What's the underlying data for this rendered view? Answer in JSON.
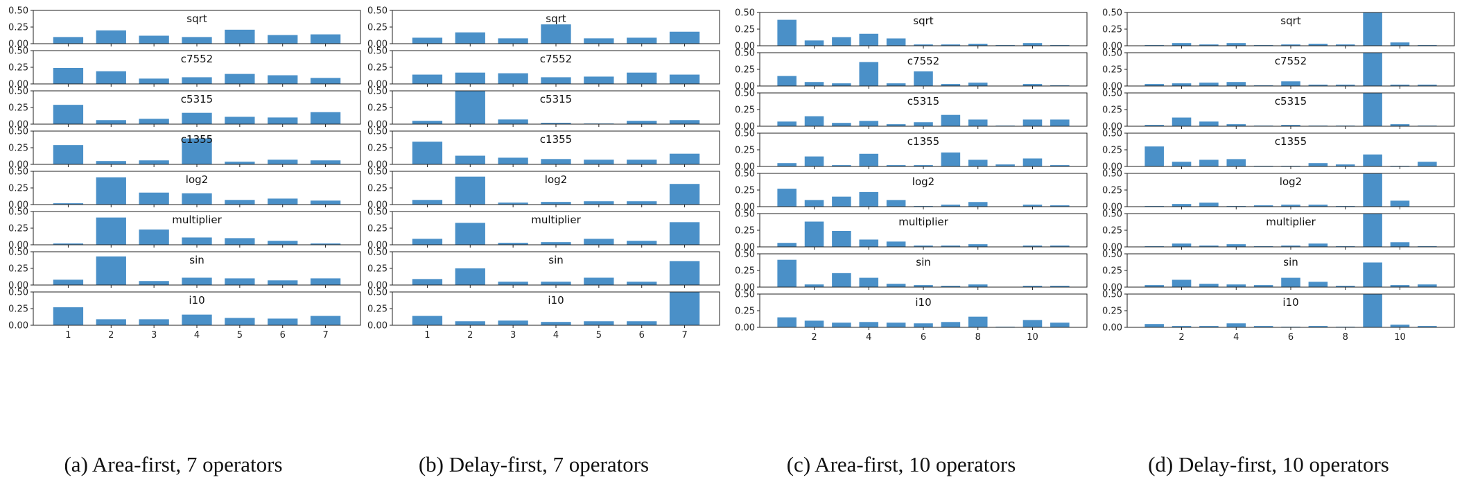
{
  "chart_data": [
    {
      "type": "bar",
      "caption": "(a) Area-first, 7 operators",
      "x_ticks": [
        "1",
        "2",
        "3",
        "4",
        "5",
        "6",
        "7"
      ],
      "y_ticks": [
        "0.00",
        "0.25",
        "0.50"
      ],
      "ylim": [
        0,
        0.5
      ],
      "categories": [
        1,
        2,
        3,
        4,
        5,
        6,
        7
      ],
      "bar_color": "#4a90c8",
      "series": [
        {
          "name": "sqrt",
          "values": [
            0.1,
            0.2,
            0.12,
            0.1,
            0.21,
            0.13,
            0.14
          ]
        },
        {
          "name": "c7552",
          "values": [
            0.24,
            0.19,
            0.08,
            0.1,
            0.15,
            0.13,
            0.09
          ]
        },
        {
          "name": "c5315",
          "values": [
            0.29,
            0.06,
            0.08,
            0.17,
            0.11,
            0.1,
            0.18
          ]
        },
        {
          "name": "c1355",
          "values": [
            0.29,
            0.05,
            0.06,
            0.39,
            0.04,
            0.07,
            0.06
          ]
        },
        {
          "name": "log2",
          "values": [
            0.02,
            0.41,
            0.18,
            0.17,
            0.07,
            0.09,
            0.06
          ]
        },
        {
          "name": "multiplier",
          "values": [
            0.02,
            0.41,
            0.23,
            0.11,
            0.1,
            0.06,
            0.02
          ]
        },
        {
          "name": "sin",
          "values": [
            0.08,
            0.43,
            0.06,
            0.11,
            0.1,
            0.07,
            0.1
          ]
        },
        {
          "name": "i10",
          "values": [
            0.27,
            0.09,
            0.09,
            0.16,
            0.11,
            0.1,
            0.14
          ]
        }
      ]
    },
    {
      "type": "bar",
      "caption": "(b) Delay-first, 7 operators",
      "x_ticks": [
        "1",
        "2",
        "3",
        "4",
        "5",
        "6",
        "7"
      ],
      "y_ticks": [
        "0.00",
        "0.25",
        "0.50"
      ],
      "ylim": [
        0,
        0.5
      ],
      "categories": [
        1,
        2,
        3,
        4,
        5,
        6,
        7
      ],
      "bar_color": "#4a90c8",
      "series": [
        {
          "name": "sqrt",
          "values": [
            0.09,
            0.17,
            0.08,
            0.29,
            0.08,
            0.09,
            0.18
          ]
        },
        {
          "name": "c7552",
          "values": [
            0.14,
            0.17,
            0.16,
            0.1,
            0.11,
            0.17,
            0.14
          ]
        },
        {
          "name": "c5315",
          "values": [
            0.05,
            0.5,
            0.07,
            0.02,
            0.01,
            0.05,
            0.06
          ]
        },
        {
          "name": "c1355",
          "values": [
            0.34,
            0.13,
            0.1,
            0.08,
            0.07,
            0.07,
            0.16
          ]
        },
        {
          "name": "log2",
          "values": [
            0.07,
            0.42,
            0.03,
            0.04,
            0.05,
            0.05,
            0.31
          ]
        },
        {
          "name": "multiplier",
          "values": [
            0.09,
            0.33,
            0.03,
            0.04,
            0.09,
            0.06,
            0.34
          ]
        },
        {
          "name": "sin",
          "values": [
            0.09,
            0.25,
            0.05,
            0.05,
            0.11,
            0.05,
            0.36
          ]
        },
        {
          "name": "i10",
          "values": [
            0.14,
            0.06,
            0.07,
            0.05,
            0.06,
            0.06,
            0.5
          ]
        }
      ]
    },
    {
      "type": "bar",
      "caption": "(c) Area-first, 10 operators",
      "x_ticks": [
        "2",
        "4",
        "6",
        "8",
        "10"
      ],
      "y_ticks": [
        "0.00",
        "0.25",
        "0.50"
      ],
      "ylim": [
        0,
        0.5
      ],
      "categories": [
        1,
        2,
        3,
        4,
        5,
        6,
        7,
        8,
        9,
        10,
        11
      ],
      "bar_color": "#4a90c8",
      "series": [
        {
          "name": "sqrt",
          "values": [
            0.39,
            0.08,
            0.13,
            0.18,
            0.11,
            0.02,
            0.02,
            0.03,
            0.01,
            0.04,
            0.01
          ]
        },
        {
          "name": "c7552",
          "values": [
            0.15,
            0.06,
            0.04,
            0.36,
            0.04,
            0.22,
            0.03,
            0.05,
            0.0,
            0.03,
            0.01
          ]
        },
        {
          "name": "c5315",
          "values": [
            0.07,
            0.15,
            0.05,
            0.08,
            0.03,
            0.06,
            0.17,
            0.1,
            0.01,
            0.1,
            0.1
          ]
        },
        {
          "name": "c1355",
          "values": [
            0.05,
            0.15,
            0.02,
            0.19,
            0.02,
            0.02,
            0.21,
            0.1,
            0.03,
            0.12,
            0.02
          ]
        },
        {
          "name": "log2",
          "values": [
            0.27,
            0.1,
            0.15,
            0.22,
            0.1,
            0.01,
            0.03,
            0.07,
            0.0,
            0.03,
            0.02
          ]
        },
        {
          "name": "multiplier",
          "values": [
            0.06,
            0.38,
            0.24,
            0.11,
            0.08,
            0.02,
            0.02,
            0.04,
            0.0,
            0.02,
            0.02
          ]
        },
        {
          "name": "sin",
          "values": [
            0.41,
            0.04,
            0.21,
            0.14,
            0.05,
            0.03,
            0.02,
            0.04,
            0.0,
            0.02,
            0.02
          ]
        },
        {
          "name": "i10",
          "values": [
            0.15,
            0.1,
            0.07,
            0.08,
            0.07,
            0.06,
            0.08,
            0.16,
            0.01,
            0.11,
            0.07
          ]
        }
      ]
    },
    {
      "type": "bar",
      "caption": "(d) Delay-first, 10 operators",
      "x_ticks": [
        "2",
        "4",
        "6",
        "8",
        "10"
      ],
      "y_ticks": [
        "0.00",
        "0.25",
        "0.50"
      ],
      "ylim": [
        0,
        0.5
      ],
      "categories": [
        1,
        2,
        3,
        4,
        5,
        6,
        7,
        8,
        9,
        10,
        11
      ],
      "bar_color": "#4a90c8",
      "series": [
        {
          "name": "sqrt",
          "values": [
            0.01,
            0.04,
            0.02,
            0.04,
            0.01,
            0.02,
            0.03,
            0.02,
            0.5,
            0.05,
            0.01
          ]
        },
        {
          "name": "c7552",
          "values": [
            0.03,
            0.04,
            0.05,
            0.06,
            0.01,
            0.07,
            0.02,
            0.02,
            0.5,
            0.02,
            0.02
          ]
        },
        {
          "name": "c5315",
          "values": [
            0.02,
            0.13,
            0.07,
            0.03,
            0.01,
            0.02,
            0.01,
            0.01,
            0.5,
            0.03,
            0.01
          ]
        },
        {
          "name": "c1355",
          "values": [
            0.3,
            0.07,
            0.1,
            0.11,
            0.01,
            0.01,
            0.05,
            0.03,
            0.18,
            0.01,
            0.07
          ]
        },
        {
          "name": "log2",
          "values": [
            0.01,
            0.04,
            0.06,
            0.01,
            0.02,
            0.03,
            0.03,
            0.01,
            0.5,
            0.09,
            0.0
          ]
        },
        {
          "name": "multiplier",
          "values": [
            0.01,
            0.05,
            0.02,
            0.04,
            0.01,
            0.02,
            0.05,
            0.01,
            0.5,
            0.07,
            0.01
          ]
        },
        {
          "name": "sin",
          "values": [
            0.03,
            0.11,
            0.05,
            0.04,
            0.03,
            0.14,
            0.08,
            0.02,
            0.37,
            0.03,
            0.04
          ]
        },
        {
          "name": "i10",
          "values": [
            0.05,
            0.02,
            0.02,
            0.06,
            0.02,
            0.01,
            0.02,
            0.01,
            0.5,
            0.04,
            0.02
          ]
        }
      ]
    }
  ]
}
